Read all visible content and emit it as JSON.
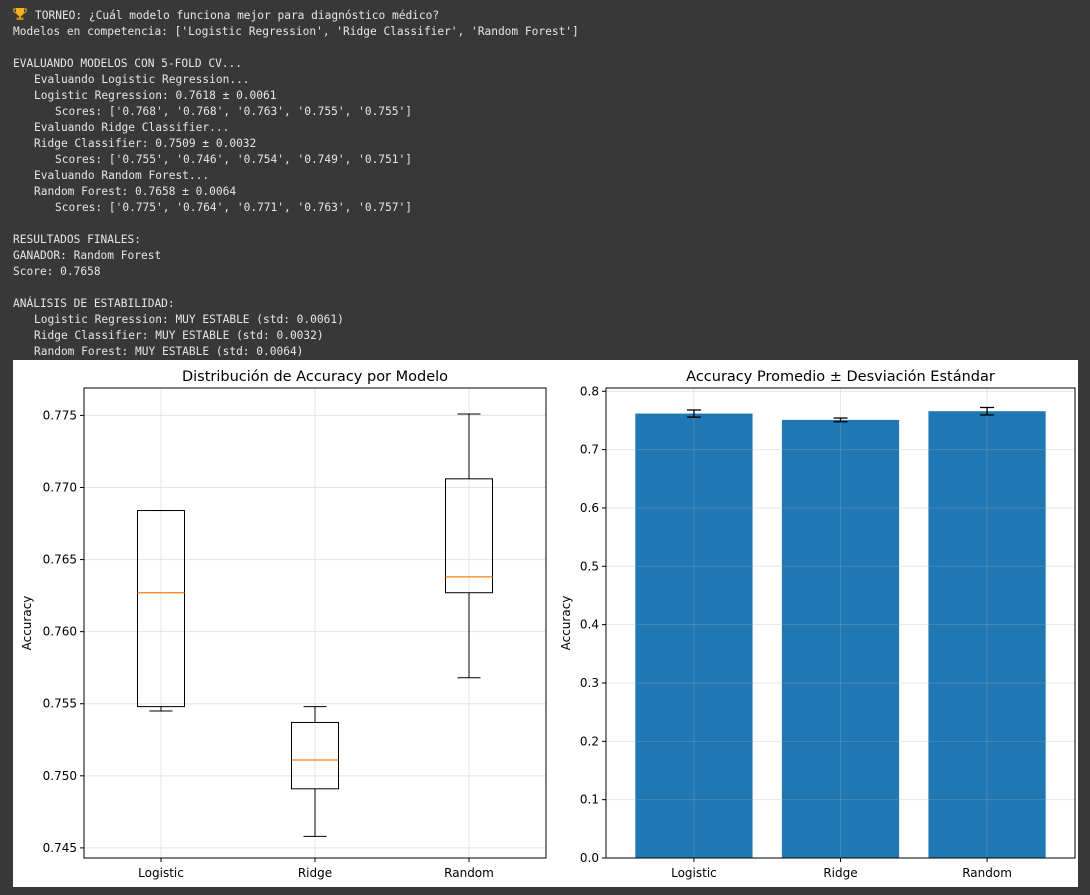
{
  "console": {
    "lines": [
      {
        "text": "TORNEO: ¿Cuál modelo funciona mejor para diagnóstico médico?",
        "indent": 0,
        "icon": "trophy-icon"
      },
      {
        "text": "Modelos en competencia: ['Logistic Regression', 'Ridge Classifier', 'Random Forest']",
        "indent": 0
      },
      {
        "text": "",
        "indent": 0
      },
      {
        "text": "EVALUANDO MODELOS CON 5-FOLD CV...",
        "indent": 0
      },
      {
        "text": "Evaluando Logistic Regression...",
        "indent": 1
      },
      {
        "text": "Logistic Regression: 0.7618 ± 0.0061",
        "indent": 1
      },
      {
        "text": "Scores: ['0.768', '0.768', '0.763', '0.755', '0.755']",
        "indent": 2
      },
      {
        "text": "Evaluando Ridge Classifier...",
        "indent": 1
      },
      {
        "text": "Ridge Classifier: 0.7509 ± 0.0032",
        "indent": 1
      },
      {
        "text": "Scores: ['0.755', '0.746', '0.754', '0.749', '0.751']",
        "indent": 2
      },
      {
        "text": "Evaluando Random Forest...",
        "indent": 1
      },
      {
        "text": "Random Forest: 0.7658 ± 0.0064",
        "indent": 1
      },
      {
        "text": "Scores: ['0.775', '0.764', '0.771', '0.763', '0.757']",
        "indent": 2
      },
      {
        "text": "",
        "indent": 0
      },
      {
        "text": "RESULTADOS FINALES:",
        "indent": 0
      },
      {
        "text": "GANADOR: Random Forest",
        "indent": 0
      },
      {
        "text": "Score: 0.7658",
        "indent": 0
      },
      {
        "text": "",
        "indent": 0
      },
      {
        "text": "ANÁLISIS DE ESTABILIDAD:",
        "indent": 0
      },
      {
        "text": "Logistic Regression: MUY ESTABLE (std: 0.0061)",
        "indent": 1
      },
      {
        "text": "Ridge Classifier: MUY ESTABLE (std: 0.0032)",
        "indent": 1
      },
      {
        "text": "Random Forest: MUY ESTABLE (std: 0.0064)",
        "indent": 1
      }
    ]
  },
  "chart_data": [
    {
      "type": "box",
      "title": "Distribución de Accuracy por Modelo",
      "xlabel": "",
      "ylabel": "Accuracy",
      "categories": [
        "Logistic",
        "Ridge",
        "Random"
      ],
      "boxes": [
        {
          "whisker_low": 0.7545,
          "q1": 0.7548,
          "median": 0.7627,
          "q3": 0.7684,
          "whisker_high": 0.7684
        },
        {
          "whisker_low": 0.7458,
          "q1": 0.7491,
          "median": 0.7511,
          "q3": 0.7537,
          "whisker_high": 0.7548
        },
        {
          "whisker_low": 0.7568,
          "q1": 0.7627,
          "median": 0.7638,
          "q3": 0.7706,
          "whisker_high": 0.7751
        }
      ],
      "yticks": [
        0.745,
        0.75,
        0.755,
        0.76,
        0.765,
        0.77,
        0.775
      ],
      "ytick_labels": [
        "0.745",
        "0.750",
        "0.755",
        "0.760",
        "0.765",
        "0.770",
        "0.775"
      ],
      "ylim": [
        0.7443,
        0.7769
      ],
      "grid": true,
      "colors": {
        "box": "#000000",
        "median": "#ff7f0e"
      }
    },
    {
      "type": "bar",
      "title": "Accuracy Promedio ± Desviación Estándar",
      "xlabel": "",
      "ylabel": "Accuracy",
      "categories": [
        "Logistic",
        "Ridge",
        "Random"
      ],
      "values": [
        0.7618,
        0.7509,
        0.7658
      ],
      "errors": [
        0.0061,
        0.0032,
        0.0064
      ],
      "yticks": [
        0.0,
        0.1,
        0.2,
        0.3,
        0.4,
        0.5,
        0.6,
        0.7,
        0.8
      ],
      "ytick_labels": [
        "0.0",
        "0.1",
        "0.2",
        "0.3",
        "0.4",
        "0.5",
        "0.6",
        "0.7",
        "0.8"
      ],
      "ylim": [
        0,
        0.8056
      ],
      "grid": true,
      "colors": {
        "bar": "#1f77b4",
        "error": "#000000"
      }
    }
  ]
}
